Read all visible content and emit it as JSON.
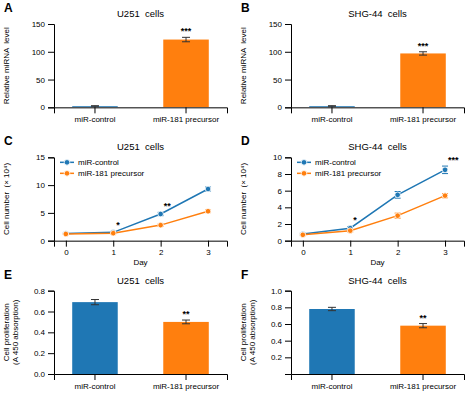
{
  "chart_data": [
    {
      "type": "bar",
      "title": "U251  cells",
      "panel_label": "A",
      "categories": [
        "miR-control",
        "miR-181 precursor"
      ],
      "values": [
        2,
        122
      ],
      "errors": [
        1,
        4
      ],
      "ylim": [
        0,
        150
      ],
      "yticks": [
        0,
        50,
        100,
        150
      ],
      "ylabel": "Relative miRNA  level",
      "annotations": [
        {
          "text": "***",
          "category": "miR-181 precursor"
        }
      ],
      "grid": false
    },
    {
      "type": "bar",
      "title": "SHG-44  cells",
      "panel_label": "B",
      "categories": [
        "miR-control",
        "miR-181 precursor"
      ],
      "values": [
        2,
        97
      ],
      "errors": [
        1,
        3
      ],
      "ylim": [
        0,
        150
      ],
      "yticks": [
        0,
        50,
        100,
        150
      ],
      "ylabel": "Relative miRNA  level",
      "annotations": [
        {
          "text": "***",
          "category": "miR-181 precursor"
        }
      ],
      "grid": false
    },
    {
      "type": "line",
      "title": "U251  cells",
      "panel_label": "C",
      "x": [
        0,
        1,
        2,
        3
      ],
      "xlim": [
        -0.25,
        3.4
      ],
      "xticks": [
        0,
        1,
        2,
        3
      ],
      "xlabel": "Day",
      "ylim": [
        0,
        15
      ],
      "yticks": [
        0,
        5,
        10,
        15
      ],
      "ylabel": "Cell number  (× 10⁴)",
      "series": [
        {
          "name": "miR-control",
          "values": [
            1.3,
            1.5,
            4.8,
            9.3
          ],
          "errors": [
            0.1,
            0.15,
            0.3,
            0.35
          ]
        },
        {
          "name": "miR-181 precursor",
          "values": [
            1.2,
            1.35,
            2.8,
            5.3
          ],
          "errors": [
            0.1,
            0.12,
            0.2,
            0.25
          ]
        }
      ],
      "annotations": [
        {
          "text": "*",
          "x": 1
        },
        {
          "text": "**",
          "x": 2
        }
      ],
      "legend": "upper left",
      "marker": "circle",
      "grid": false
    },
    {
      "type": "line",
      "title": "SHG-44  cells",
      "panel_label": "D",
      "x": [
        0,
        1,
        2,
        3
      ],
      "xlim": [
        -0.25,
        3.4
      ],
      "xticks": [
        0,
        1,
        2,
        3
      ],
      "xlabel": "Day",
      "ylim": [
        0,
        10
      ],
      "yticks": [
        0,
        2,
        4,
        6,
        8,
        10
      ],
      "ylabel": "Cell number  (× 10⁴)",
      "series": [
        {
          "name": "miR-control",
          "values": [
            0.8,
            1.5,
            5.5,
            8.5
          ],
          "errors": [
            0.1,
            0.2,
            0.4,
            0.45
          ]
        },
        {
          "name": "miR-181 precursor",
          "values": [
            0.7,
            1.2,
            3.0,
            5.4
          ],
          "errors": [
            0.1,
            0.15,
            0.3,
            0.25
          ]
        }
      ],
      "annotations": [
        {
          "text": "*",
          "x": 1
        },
        {
          "text": "***",
          "x": 3
        }
      ],
      "legend": "upper left",
      "marker": "circle",
      "grid": false
    },
    {
      "type": "bar",
      "title": "U251  cells",
      "panel_label": "E",
      "categories": [
        "miR-control",
        "miR-181 precursor"
      ],
      "values": [
        0.69,
        0.5
      ],
      "errors": [
        0.025,
        0.018
      ],
      "ylim": [
        0,
        0.8
      ],
      "yticks": [
        {
          "value": 0,
          "label": "0.0"
        },
        0.2,
        0.4,
        0.6,
        0.8
      ],
      "ylabel": "Cell proliferation\n(A 450 absorption)",
      "annotations": [
        {
          "text": "**",
          "category": "miR-181 precursor"
        }
      ],
      "grid": false
    },
    {
      "type": "bar",
      "title": "SHG-44  cells",
      "panel_label": "F",
      "categories": [
        "miR-control",
        "miR-181 precursor"
      ],
      "values": [
        0.78,
        0.58
      ],
      "errors": [
        0.02,
        0.025
      ],
      "ylim": [
        0,
        1
      ],
      "yticks": [
        0.2,
        0.4,
        0.6,
        0.8,
        {
          "value": 1,
          "label": "1.0"
        }
      ],
      "ylabel": "Cell proliferation\n(A 450 absorption)",
      "annotations": [
        {
          "text": "**",
          "category": "miR-181 precursor"
        }
      ],
      "grid": false
    }
  ]
}
